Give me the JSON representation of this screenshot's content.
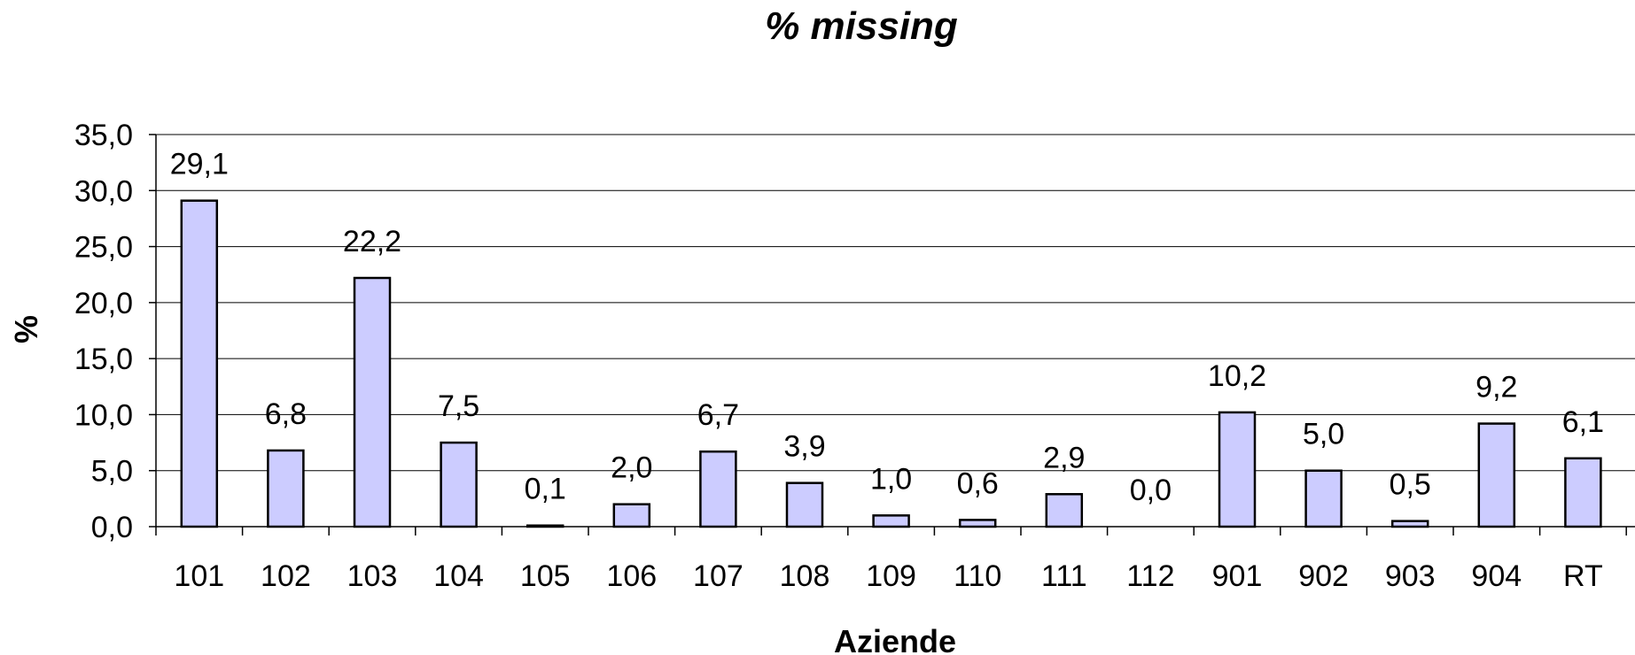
{
  "chart_data": {
    "type": "bar",
    "title": "% missing",
    "xlabel": "Aziende",
    "ylabel": "%",
    "categories": [
      "101",
      "102",
      "103",
      "104",
      "105",
      "106",
      "107",
      "108",
      "109",
      "110",
      "111",
      "112",
      "901",
      "902",
      "903",
      "904",
      "RT"
    ],
    "values": [
      29.1,
      6.8,
      22.2,
      7.5,
      0.1,
      2.0,
      6.7,
      3.9,
      1.0,
      0.6,
      2.9,
      0.0,
      10.2,
      5.0,
      0.5,
      9.2,
      6.1
    ],
    "value_labels": [
      "29,1",
      "6,8",
      "22,2",
      "7,5",
      "0,1",
      "2,0",
      "6,7",
      "3,9",
      "1,0",
      "0,6",
      "2,9",
      "0,0",
      "10,2",
      "5,0",
      "0,5",
      "9,2",
      "6,1"
    ],
    "ylim": [
      0,
      35
    ],
    "yticks": [
      0,
      5,
      10,
      15,
      20,
      25,
      30,
      35
    ],
    "ytick_labels": [
      "0,0",
      "5,0",
      "10,0",
      "15,0",
      "20,0",
      "25,0",
      "30,0",
      "35,0"
    ],
    "grid": true,
    "bar_color": "#ccccff",
    "bar_edge_color": "#000000"
  }
}
